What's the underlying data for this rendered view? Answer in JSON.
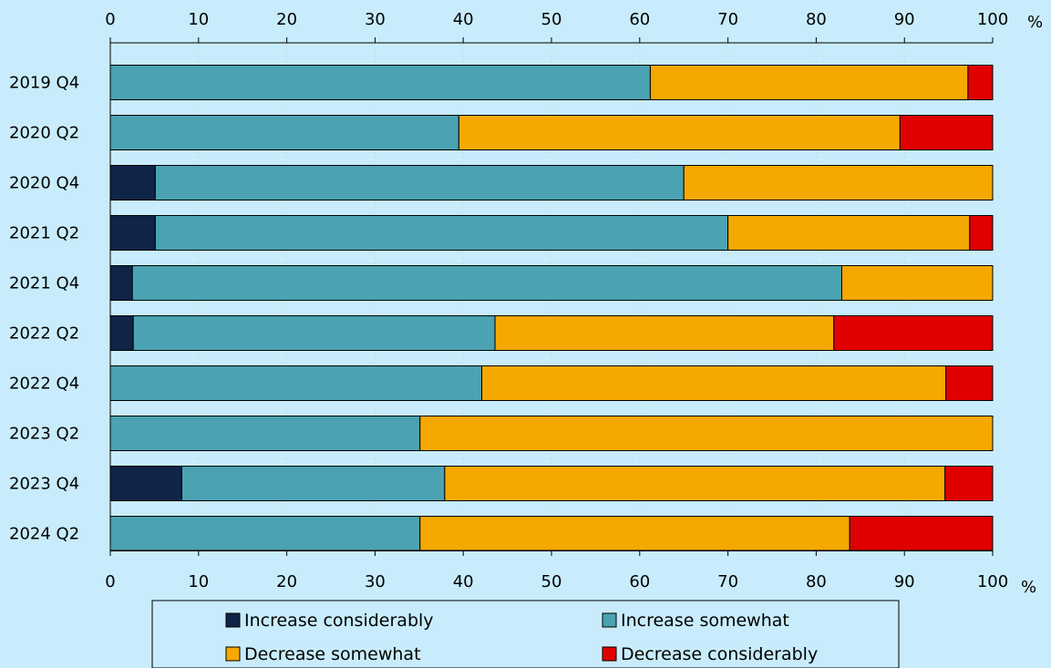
{
  "chart_data": {
    "type": "bar",
    "orientation": "horizontal",
    "stacked": true,
    "title": "",
    "xlabel": "",
    "ylabel": "",
    "unit": "%",
    "xlim": [
      0,
      100
    ],
    "x_ticks": [
      0,
      10,
      20,
      30,
      40,
      50,
      60,
      70,
      80,
      90,
      100
    ],
    "grid": true,
    "legend_position": "bottom",
    "categories": [
      "2019 Q4",
      "2020 Q2",
      "2020 Q4",
      "2021 Q2",
      "2021 Q4",
      "2022 Q2",
      "2022 Q4",
      "2023 Q2",
      "2023 Q4",
      "2024 Q2"
    ],
    "series": [
      {
        "name": "Increase considerably",
        "color": "#0f2447",
        "values": [
          0,
          0,
          5.1,
          5.1,
          2.5,
          2.6,
          0,
          0,
          8.1,
          0
        ]
      },
      {
        "name": "Increase somewhat",
        "color": "#4aa2b2",
        "values": [
          61.2,
          39.5,
          59.9,
          64.9,
          80.4,
          41.0,
          42.1,
          35.1,
          29.8,
          35.1
        ]
      },
      {
        "name": "Decrease somewhat",
        "color": "#f5a800",
        "values": [
          36.0,
          50.0,
          35.0,
          27.4,
          17.1,
          38.4,
          52.6,
          64.9,
          56.7,
          48.7
        ]
      },
      {
        "name": "Decrease considerably",
        "color": "#e00000",
        "values": [
          2.8,
          10.5,
          0,
          2.6,
          0,
          18.0,
          5.3,
          0,
          5.4,
          16.2
        ]
      }
    ]
  }
}
